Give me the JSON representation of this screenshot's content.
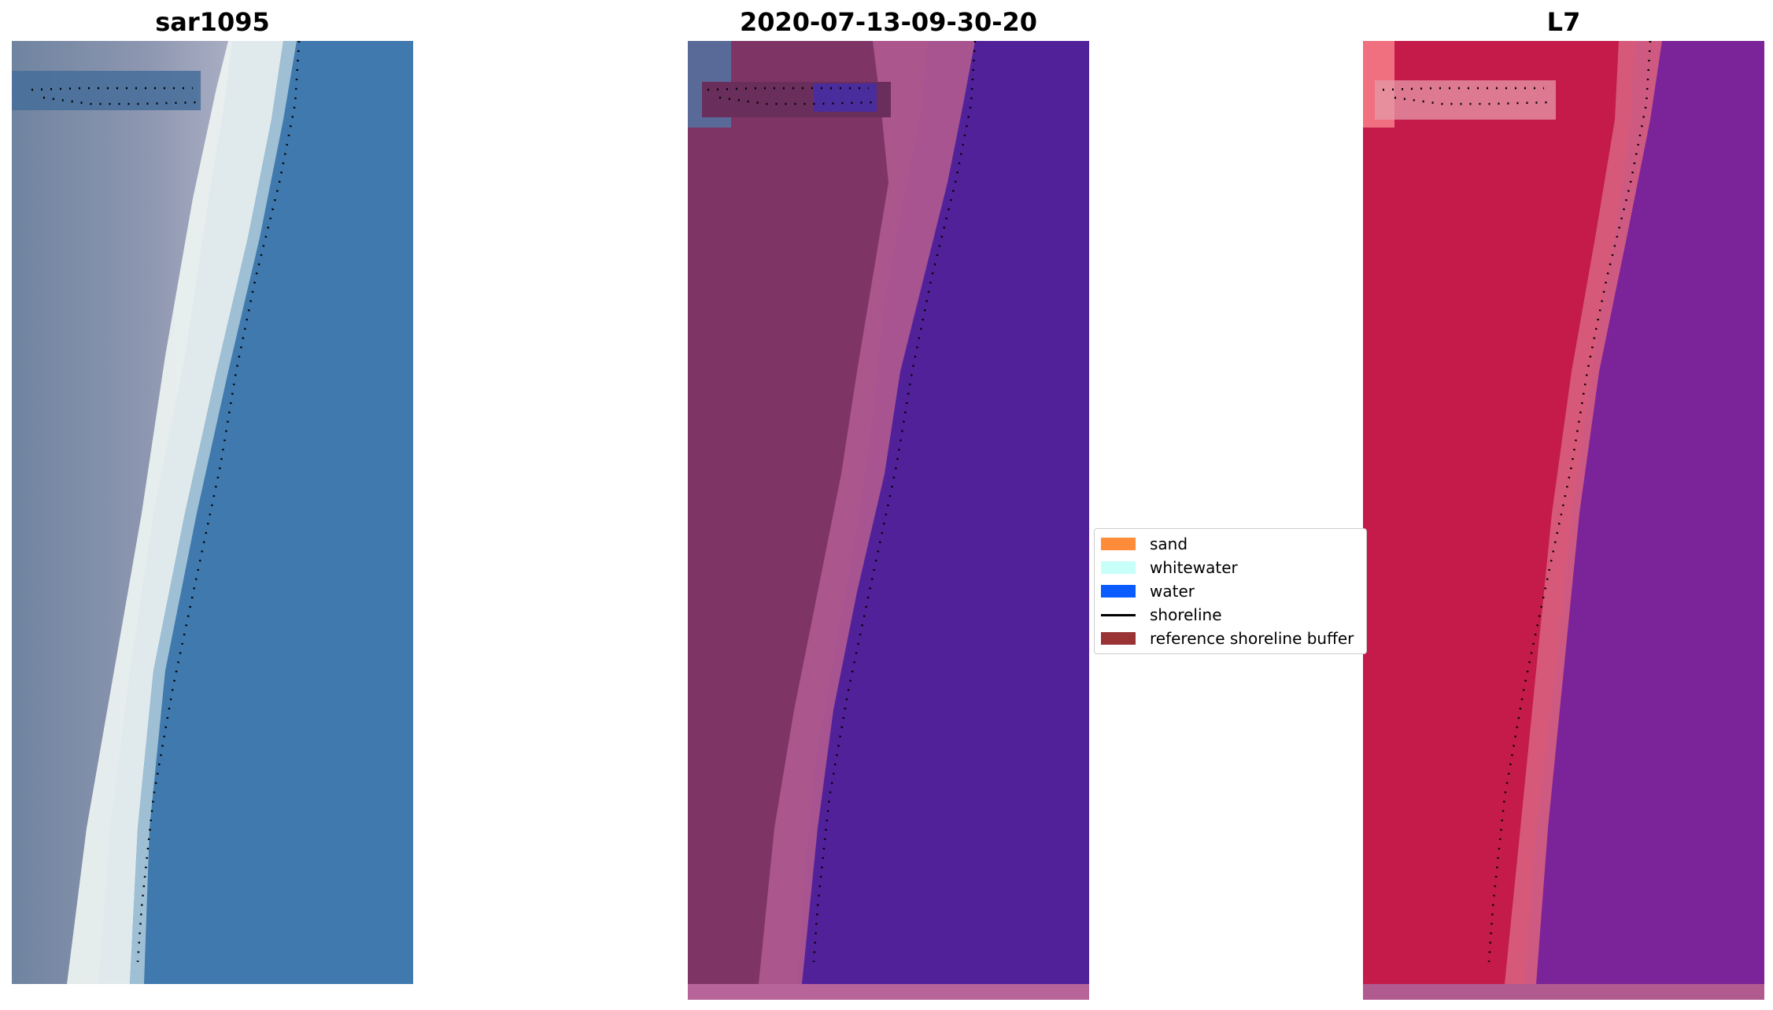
{
  "panels": [
    {
      "title": "sar1095"
    },
    {
      "title": "2020-07-13-09-30-20"
    },
    {
      "title": "L7"
    }
  ],
  "legend": {
    "items": [
      {
        "label": "sand",
        "color": "#ff8c3a",
        "kind": "patch"
      },
      {
        "label": "whitewater",
        "color": "#c8fff8",
        "kind": "patch"
      },
      {
        "label": "water",
        "color": "#0a5cff",
        "kind": "patch"
      },
      {
        "label": "shoreline",
        "color": "#000000",
        "kind": "line"
      },
      {
        "label": "reference shoreline buffer",
        "color": "#9a3333",
        "kind": "patch"
      }
    ]
  },
  "colors": {
    "rgb_land": "#7d8ea6",
    "rgb_water": "#3f79ad",
    "rgb_surf": "#eef4f2",
    "class_land": "#7e3566",
    "class_buffer": "#b05a90",
    "class_water": "#51219a",
    "class_strip": "#b6649a",
    "ir_land": "#c41b4a",
    "ir_beach": "#d8607e",
    "ir_water": "#7b2499"
  }
}
